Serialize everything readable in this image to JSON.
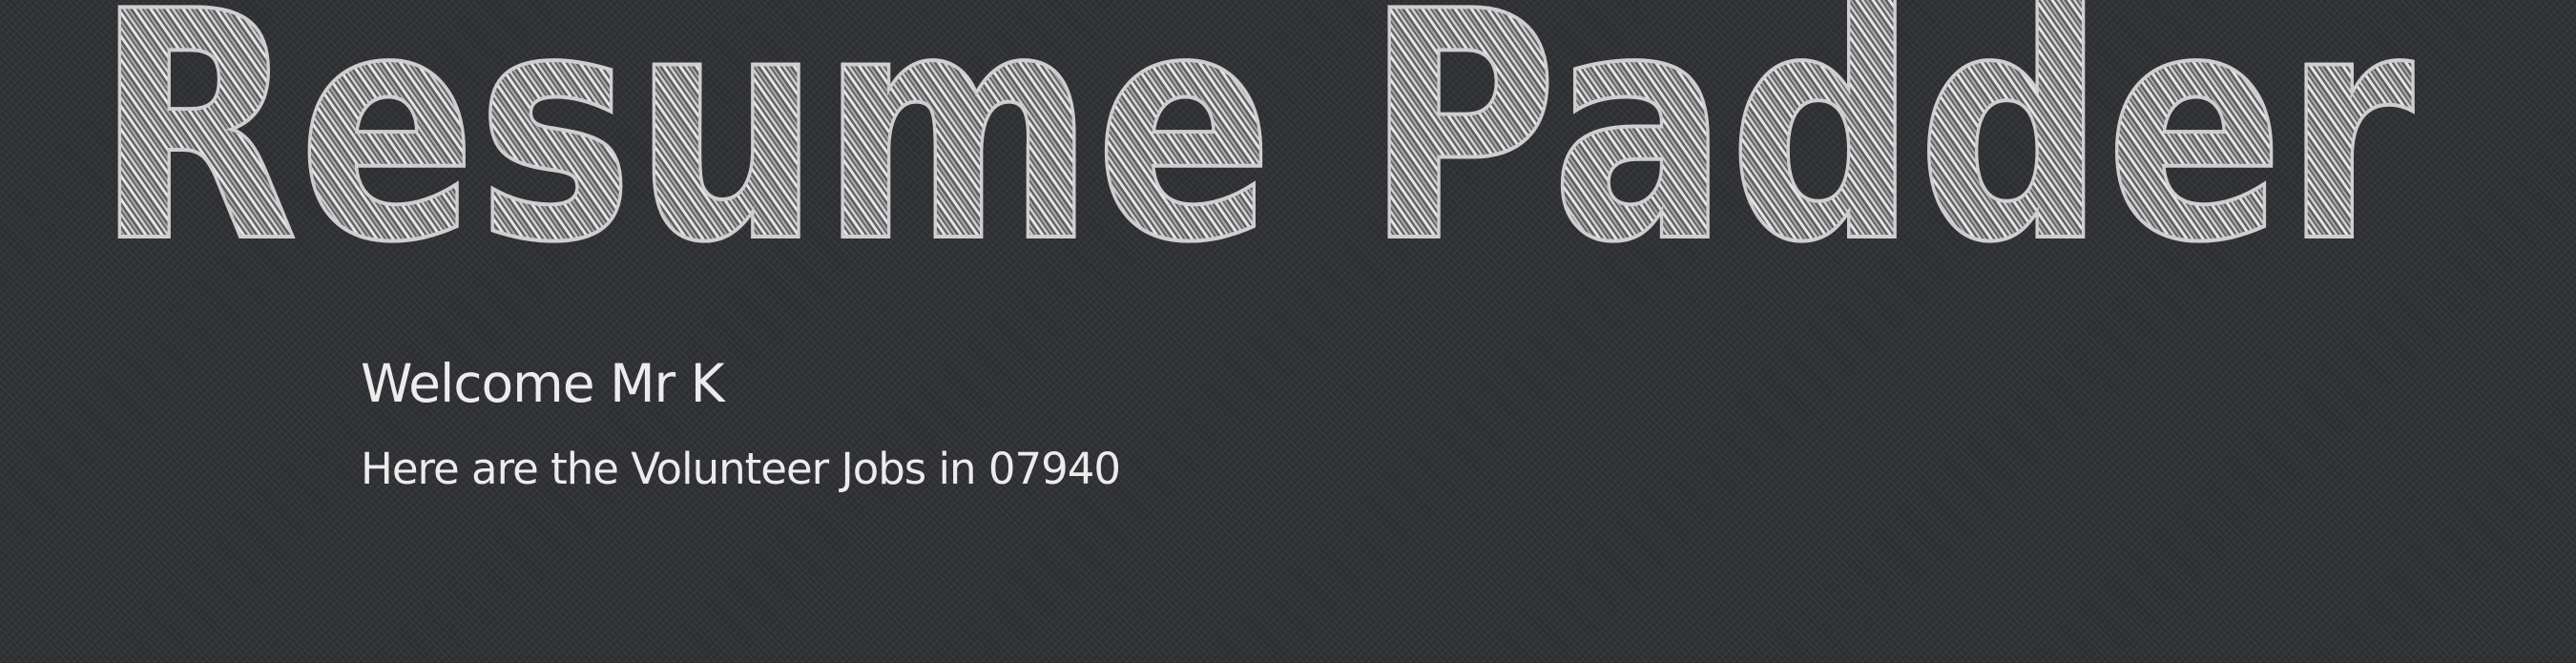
{
  "header": {
    "logo_text": "Resume Padder"
  },
  "main": {
    "welcome": "Welcome Mr K",
    "subtitle": "Here are the Volunteer Jobs in 07940"
  },
  "colors": {
    "background": "#2f3134",
    "text": "#ececec",
    "logo_stroke": "#c8c8c8"
  }
}
